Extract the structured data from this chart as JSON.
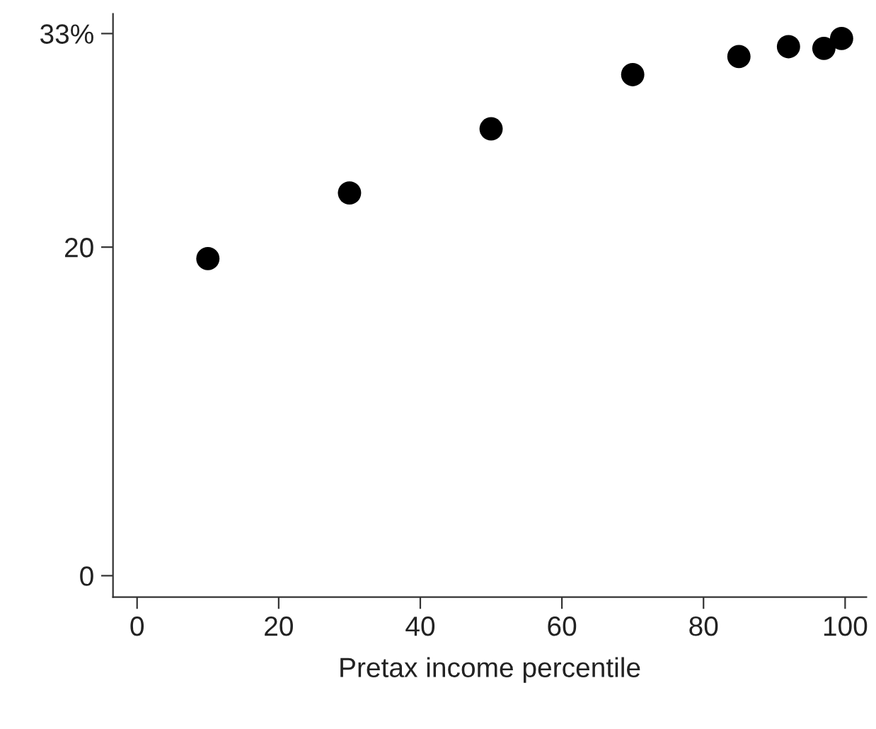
{
  "chart_data": {
    "type": "scatter",
    "xlabel": "Pretax income percentile",
    "x": [
      10,
      30,
      50,
      70,
      85,
      92,
      97,
      99.5
    ],
    "values": [
      19.3,
      23.3,
      27.2,
      30.5,
      31.6,
      32.2,
      32.1,
      32.7
    ],
    "color": "#000000",
    "marker": "circle",
    "xlim": [
      -3.4,
      103
    ],
    "xticks": [
      0,
      20,
      40,
      60,
      80,
      100
    ],
    "ylim": [
      -1.3,
      34.2
    ],
    "yticks": [
      0,
      20,
      {
        "value": 33,
        "label": "33%"
      }
    ],
    "grid": false,
    "legend": false
  }
}
